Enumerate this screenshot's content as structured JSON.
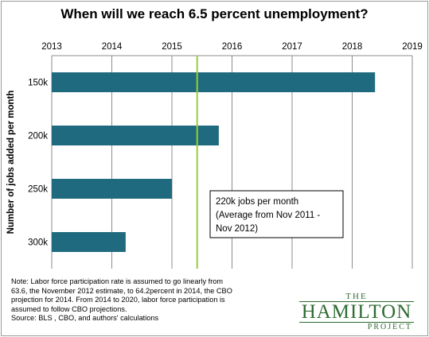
{
  "chart_data": {
    "type": "bar",
    "orientation": "horizontal",
    "title": "When will we reach 6.5 percent unemployment?",
    "ylabel": "Number of jobs added per month",
    "xlabel": "",
    "categories": [
      "150k",
      "200k",
      "250k",
      "300k"
    ],
    "values": [
      2018.38,
      2015.78,
      2015.0,
      2014.23
    ],
    "xlim": [
      2013,
      2019
    ],
    "x_ticks": [
      "2013",
      "2014",
      "2015",
      "2016",
      "2017",
      "2018",
      "2019"
    ],
    "x_axis_position": "top",
    "grid": true,
    "bar_color": "#1f6a7e",
    "reference_line": {
      "value": 2015.42,
      "color": "#9acd32"
    },
    "annotation": {
      "lines": [
        "220k jobs per month",
        "(Average from Nov 2011 -",
        "Nov 2012)"
      ]
    }
  },
  "note": {
    "lines": [
      "Note: Labor force participation rate is assumed to go linearly from",
      "63.6, the November 2012 estimate, to 64.2percent in 2014, the CBO",
      "projection for 2014. From 2014 to 2020, labor force participation is",
      "assumed to follow CBO projections.",
      "Source: BLS , CBO, and authors' calculations"
    ]
  },
  "logo": {
    "the": "THE",
    "main": "HAMILTON",
    "project": "PROJECT"
  }
}
